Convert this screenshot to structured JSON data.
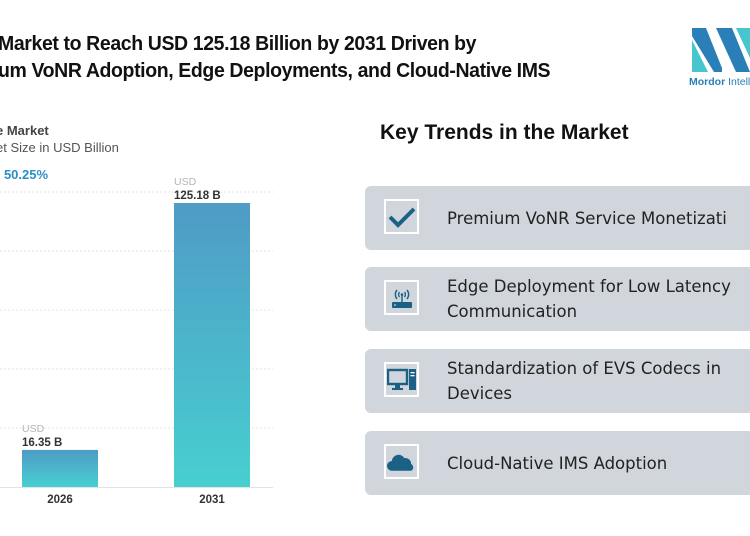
{
  "header": {
    "title_line1": "Market to Reach USD 125.18 Billion by 2031 Driven by",
    "title_line2": "um VoNR Adoption, Edge Deployments, and Cloud-Native IMS",
    "logo_text_bold": "Mordor",
    "logo_text_rest": " Intelli"
  },
  "chart_panel": {
    "title": "e Market",
    "subtitle": "et Size in USD Billion",
    "cagr_label": ": ",
    "cagr_value": "50.25%"
  },
  "chart_data": {
    "type": "bar",
    "title": "e Market",
    "ylabel": "et Size in USD Billion",
    "categories": [
      "2026",
      "2031"
    ],
    "values": [
      16.35,
      125.18
    ],
    "value_prefix": "USD",
    "value_labels": [
      "16.35 B",
      "125.18 B"
    ],
    "ylim": [
      0,
      125.18
    ],
    "grid": true,
    "colors": {
      "bar_top": "#4f9bc6",
      "bar_bottom": "#47cfd0"
    }
  },
  "trends": {
    "title": "Key Trends in the Market",
    "items": [
      {
        "icon": "checkmark-icon",
        "label": "Premium VoNR Service Monetizati"
      },
      {
        "icon": "wireless-router-icon",
        "label": "Edge Deployment for Low Latency Communication"
      },
      {
        "icon": "desktop-computer-icon",
        "label": "Standardization of EVS Codecs in Devices"
      },
      {
        "icon": "cloud-icon",
        "label": "Cloud-Native IMS Adoption"
      }
    ],
    "icon_color": "#1b6185",
    "card_color": "#d1d6dc"
  }
}
